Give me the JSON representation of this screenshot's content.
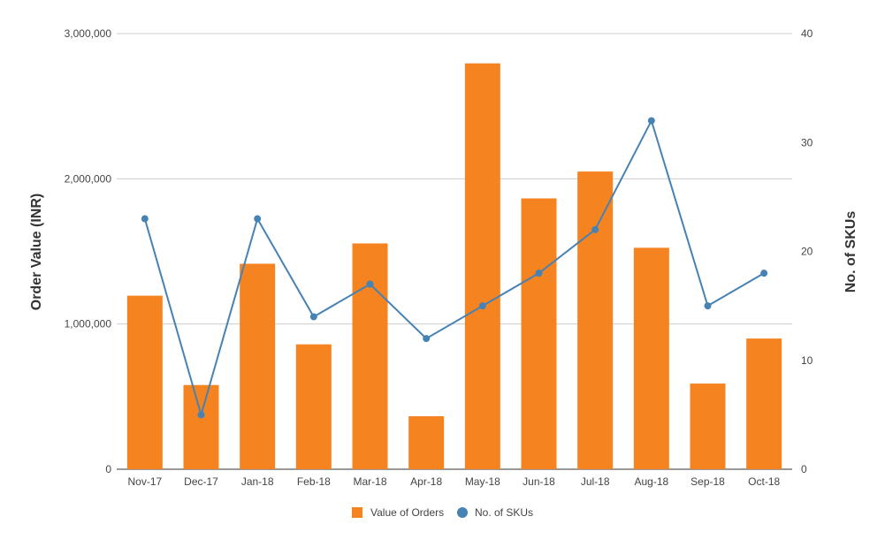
{
  "chart_data": {
    "type": "bar",
    "categories": [
      "Nov-17",
      "Dec-17",
      "Jan-18",
      "Feb-18",
      "Mar-18",
      "Apr-18",
      "May-18",
      "Jun-18",
      "Jul-18",
      "Aug-18",
      "Sep-18",
      "Oct-18"
    ],
    "series": [
      {
        "name": "Value of Orders",
        "type": "bar",
        "axis": "left",
        "color": "#f58320",
        "values": [
          1195000,
          580000,
          1415000,
          860000,
          1555000,
          365000,
          2795000,
          1865000,
          2050000,
          1525000,
          590000,
          900000
        ]
      },
      {
        "name": "No. of SKUs",
        "type": "line",
        "axis": "right",
        "color": "#4682b4",
        "values": [
          23,
          5,
          23,
          14,
          17,
          12,
          15,
          18,
          22,
          32,
          15,
          18
        ]
      }
    ],
    "ylabel": "Order Value (INR)",
    "y2label": "No. of SKUs",
    "ylim": [
      0,
      3000000
    ],
    "y2lim": [
      0,
      40
    ],
    "yticks": [
      0,
      1000000,
      2000000,
      3000000
    ],
    "ytick_labels": [
      "0",
      "1,000,000",
      "2,000,000",
      "3,000,000"
    ],
    "y2ticks": [
      0,
      10,
      20,
      30,
      40
    ],
    "y2tick_labels": [
      "0",
      "10",
      "20",
      "30",
      "40"
    ],
    "grid": true,
    "legend": "bottom-center"
  }
}
